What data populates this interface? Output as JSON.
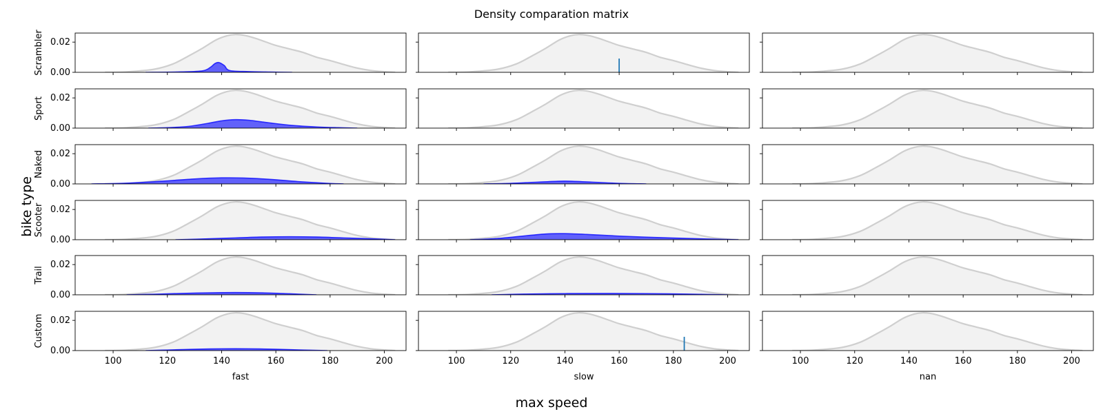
{
  "figure": {
    "title": "Density comparation matrix",
    "xlabel": "max speed",
    "ylabel": "bike type"
  },
  "chart_data": {
    "type": "area",
    "title": "Density comparation matrix",
    "xlabel": "max speed",
    "ylabel": "bike type",
    "grid": false,
    "xlim": [
      86,
      208
    ],
    "ylim": [
      0,
      0.026
    ],
    "x_ticks": [
      100,
      120,
      140,
      160,
      180,
      200
    ],
    "y_ticks": [
      0.0,
      0.02
    ],
    "y_tick_labels": [
      "0.00",
      "0.02"
    ],
    "columns": [
      "fast",
      "slow",
      "nan"
    ],
    "rows": [
      "Scrambler",
      "Sport",
      "Naked",
      "Scooter",
      "Trail",
      "Custom"
    ],
    "background_density": {
      "color": "#cfcfcf",
      "fill": "#f2f2f2",
      "x": [
        97,
        105,
        115,
        122,
        128,
        133,
        138,
        142,
        145,
        148,
        152,
        156,
        160,
        165,
        170,
        175,
        180,
        185,
        190,
        195,
        200,
        204
      ],
      "y": [
        0.0,
        0.0003,
        0.002,
        0.0055,
        0.011,
        0.016,
        0.0215,
        0.0242,
        0.025,
        0.0246,
        0.0228,
        0.0203,
        0.0178,
        0.0155,
        0.0132,
        0.01,
        0.0078,
        0.0052,
        0.0028,
        0.0012,
        0.0004,
        0.0
      ]
    },
    "panels": [
      {
        "row": "Scrambler",
        "col": "fast",
        "color": "#0000ff",
        "x": [
          112,
          125,
          133,
          136,
          137.5,
          139,
          141,
          143,
          150,
          158,
          166
        ],
        "y": [
          0.0,
          0.0003,
          0.001,
          0.0035,
          0.0058,
          0.0065,
          0.0045,
          0.0012,
          0.0005,
          0.0002,
          0.0
        ]
      },
      {
        "row": "Scrambler",
        "col": "slow",
        "rug": [
          160
        ],
        "x": [],
        "y": []
      },
      {
        "row": "Scrambler",
        "col": "nan",
        "x": [],
        "y": []
      },
      {
        "row": "Sport",
        "col": "fast",
        "color": "#0000ff",
        "x": [
          113,
          120,
          128,
          135,
          140,
          145,
          150,
          158,
          166,
          175,
          183,
          190
        ],
        "y": [
          0.0,
          0.0003,
          0.0012,
          0.0032,
          0.0048,
          0.0056,
          0.0052,
          0.0034,
          0.0018,
          0.0008,
          0.0003,
          0.0
        ]
      },
      {
        "row": "Sport",
        "col": "slow",
        "x": [],
        "y": []
      },
      {
        "row": "Sport",
        "col": "nan",
        "x": [],
        "y": []
      },
      {
        "row": "Naked",
        "col": "fast",
        "color": "#0000ff",
        "x": [
          92,
          105,
          118,
          130,
          140,
          148,
          158,
          168,
          178,
          185
        ],
        "y": [
          0.0,
          0.0005,
          0.0018,
          0.0033,
          0.004,
          0.0039,
          0.003,
          0.0016,
          0.0005,
          0.0
        ]
      },
      {
        "row": "Naked",
        "col": "slow",
        "color": "#0000ff",
        "x": [
          110,
          120,
          130,
          138,
          142,
          150,
          160,
          170
        ],
        "y": [
          0.0,
          0.0004,
          0.0012,
          0.0018,
          0.0018,
          0.0012,
          0.0004,
          0.0
        ]
      },
      {
        "row": "Naked",
        "col": "nan",
        "x": [],
        "y": []
      },
      {
        "row": "Scooter",
        "col": "fast",
        "color": "#0000ff",
        "x": [
          123,
          135,
          145,
          155,
          165,
          175,
          185,
          195,
          204
        ],
        "y": [
          0.0,
          0.0006,
          0.0012,
          0.0018,
          0.002,
          0.0018,
          0.0012,
          0.0006,
          0.0
        ]
      },
      {
        "row": "Scooter",
        "col": "slow",
        "color": "#0000ff",
        "x": [
          105,
          115,
          125,
          133,
          140,
          148,
          160,
          175,
          190,
          204
        ],
        "y": [
          0.0,
          0.0008,
          0.0025,
          0.0038,
          0.004,
          0.0035,
          0.0024,
          0.0014,
          0.0006,
          0.0
        ]
      },
      {
        "row": "Scooter",
        "col": "nan",
        "x": [],
        "y": []
      },
      {
        "row": "Trail",
        "col": "fast",
        "color": "#0000ff",
        "x": [
          105,
          115,
          125,
          135,
          145,
          155,
          165,
          175
        ],
        "y": [
          0.0,
          0.0004,
          0.0009,
          0.0013,
          0.0015,
          0.0013,
          0.0007,
          0.0
        ]
      },
      {
        "row": "Trail",
        "col": "slow",
        "color": "#0000ff",
        "x": [
          113,
          125,
          140,
          155,
          170,
          185,
          200
        ],
        "y": [
          0.0,
          0.0005,
          0.0008,
          0.0009,
          0.0008,
          0.0005,
          0.0
        ]
      },
      {
        "row": "Trail",
        "col": "nan",
        "x": [],
        "y": []
      },
      {
        "row": "Custom",
        "col": "fast",
        "color": "#0000ff",
        "x": [
          112,
          120,
          130,
          140,
          150,
          160,
          170,
          179
        ],
        "y": [
          0.0,
          0.0004,
          0.0009,
          0.0012,
          0.0012,
          0.0009,
          0.0004,
          0.0
        ]
      },
      {
        "row": "Custom",
        "col": "slow",
        "rug": [
          184
        ],
        "x": [],
        "y": []
      },
      {
        "row": "Custom",
        "col": "nan",
        "x": [],
        "y": []
      }
    ]
  }
}
